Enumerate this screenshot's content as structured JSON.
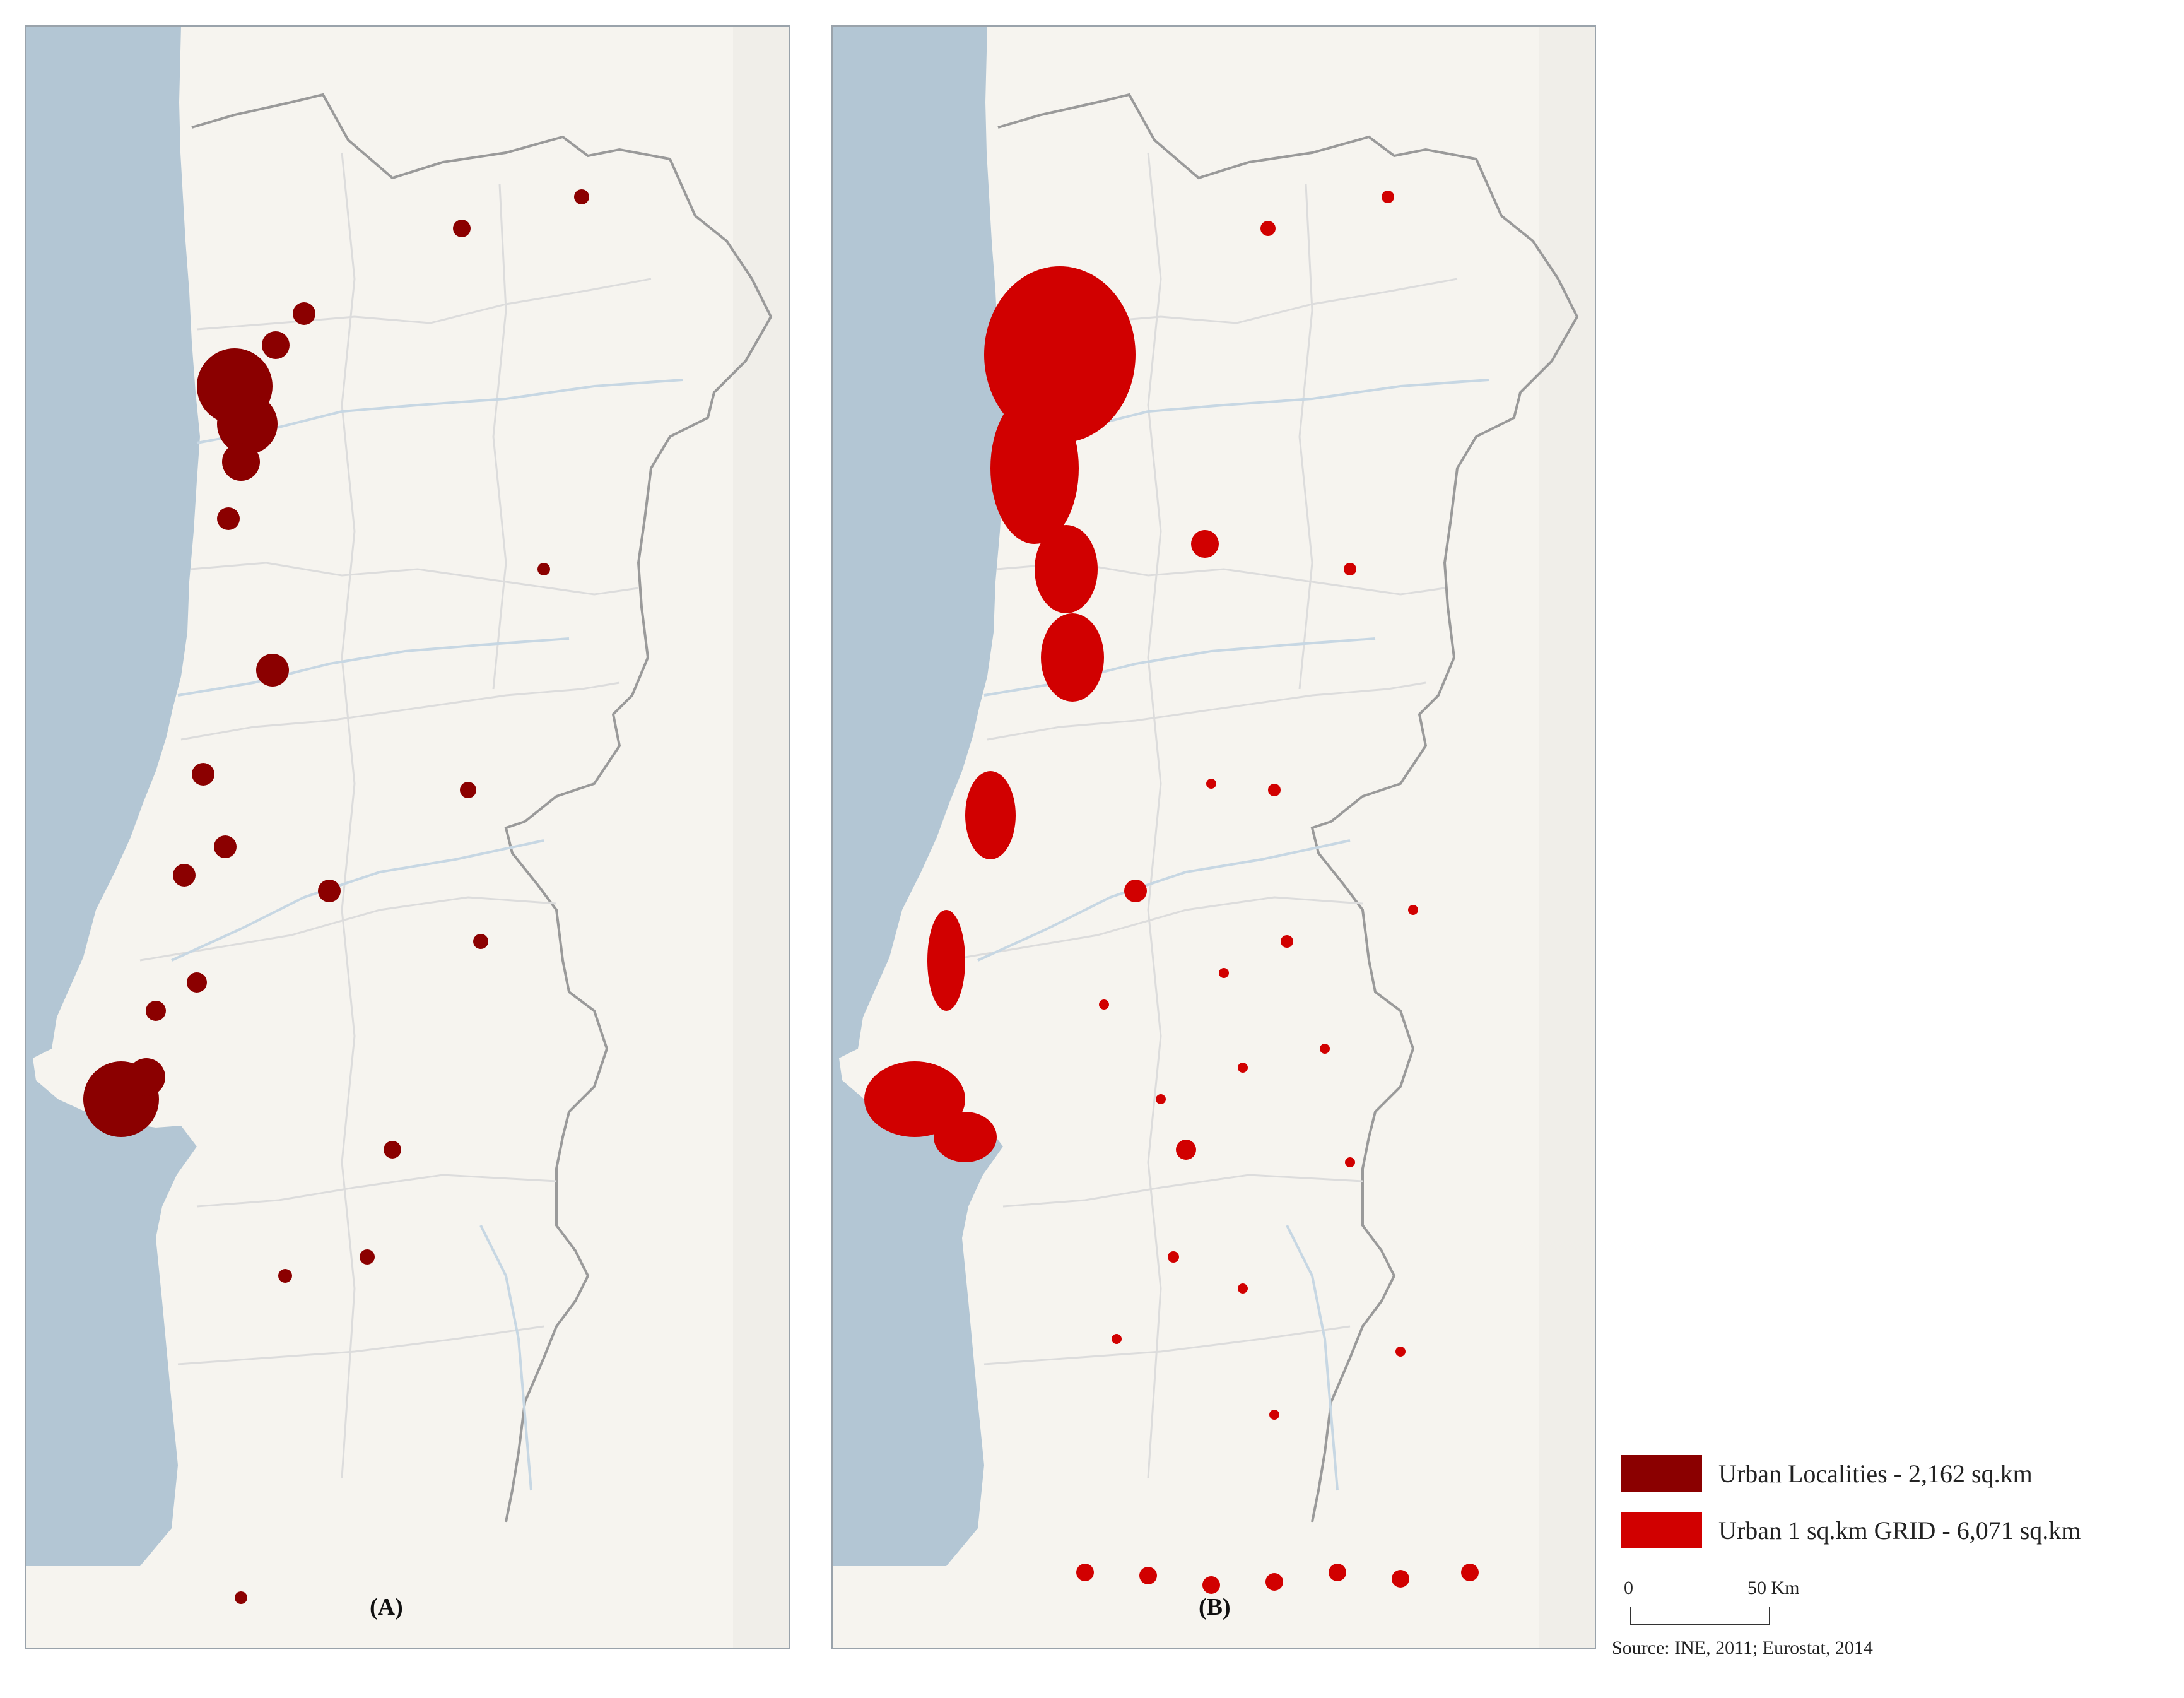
{
  "panels": [
    {
      "id": "A",
      "label": "(A)"
    },
    {
      "id": "B",
      "label": "(B)"
    }
  ],
  "legend": {
    "items": [
      {
        "label": "Urban Localities  - 2,162  sq.km",
        "color": "#8b0000"
      },
      {
        "label": "Urban 1 sq.km GRID - 6,071 sq.km",
        "color": "#d10000"
      }
    ]
  },
  "scale": {
    "zero": "0",
    "max": "50 Km"
  },
  "source": "Source: INE, 2011; Eurostat, 2014",
  "colors": {
    "sea": "#b3c6d4",
    "land": "#f6f4ef",
    "border": "#9a9a9a",
    "rivers": "#c7d7e3"
  }
}
